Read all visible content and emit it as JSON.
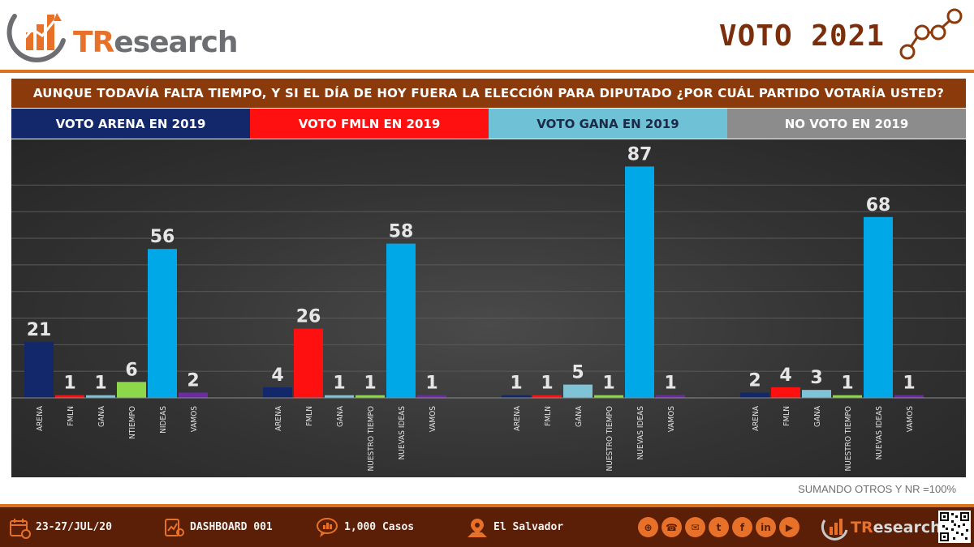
{
  "header": {
    "brand_tr": "TR",
    "brand_rest": "esearch",
    "page_title": "VOTO 2021"
  },
  "question": "AUNQUE TODAVÍA FALTA TIEMPO, Y SI EL DÍA DE HOY FUERA LA ELECCIÓN PARA DIPUTADO ¿POR CUÁL PARTIDO VOTARÍA USTED?",
  "sections": [
    {
      "label": "VOTO ARENA EN 2019"
    },
    {
      "label": "VOTO FMLN EN 2019"
    },
    {
      "label": "VOTO GANA EN 2019"
    },
    {
      "label": "NO VOTO EN 2019"
    }
  ],
  "note": "SUMANDO OTROS Y NR =100%",
  "footer": {
    "date": "23-27/JUL/20",
    "dashboard": "DASHBOARD 001",
    "cases": "1,000 Casos",
    "location": "El Salvador",
    "brand_tr": "TR",
    "brand_rest": "esearch"
  },
  "colors": {
    "arena": "#13286a",
    "fmln": "#ff1010",
    "gana": "#7fc3d6",
    "nuestro_tiempo": "#8cd84a",
    "nuevas_ideas": "#00a8e8",
    "vamos": "#6a2ca0"
  },
  "chart_data": [
    {
      "type": "bar",
      "group": "VOTO ARENA EN 2019",
      "categories": [
        "ARENA",
        "FMLN",
        "GANA",
        "NTIEMPO",
        "NIDEAS",
        "VAMOS"
      ],
      "values": [
        21,
        1,
        1,
        6,
        56,
        2
      ],
      "ylim": [
        0,
        90
      ]
    },
    {
      "type": "bar",
      "group": "VOTO FMLN EN 2019",
      "categories": [
        "ARENA",
        "FMLN",
        "GANA",
        "NUESTRO TIEMPO",
        "NUEVAS IDEAS",
        "VAMOS"
      ],
      "values": [
        4,
        26,
        1,
        1,
        58,
        1
      ],
      "ylim": [
        0,
        90
      ]
    },
    {
      "type": "bar",
      "group": "VOTO GANA EN 2019",
      "categories": [
        "ARENA",
        "FMLN",
        "GANA",
        "NUESTRO TIEMPO",
        "NUEVAS IDEAS",
        "VAMOS"
      ],
      "values": [
        1,
        1,
        5,
        1,
        87,
        1
      ],
      "ylim": [
        0,
        90
      ]
    },
    {
      "type": "bar",
      "group": "NO VOTO EN 2019",
      "categories": [
        "ARENA",
        "FMLN",
        "GANA",
        "NUESTRO TIEMPO",
        "NUEVAS IDEAS",
        "VAMOS"
      ],
      "values": [
        2,
        4,
        3,
        1,
        68,
        1
      ],
      "ylim": [
        0,
        90
      ]
    }
  ]
}
